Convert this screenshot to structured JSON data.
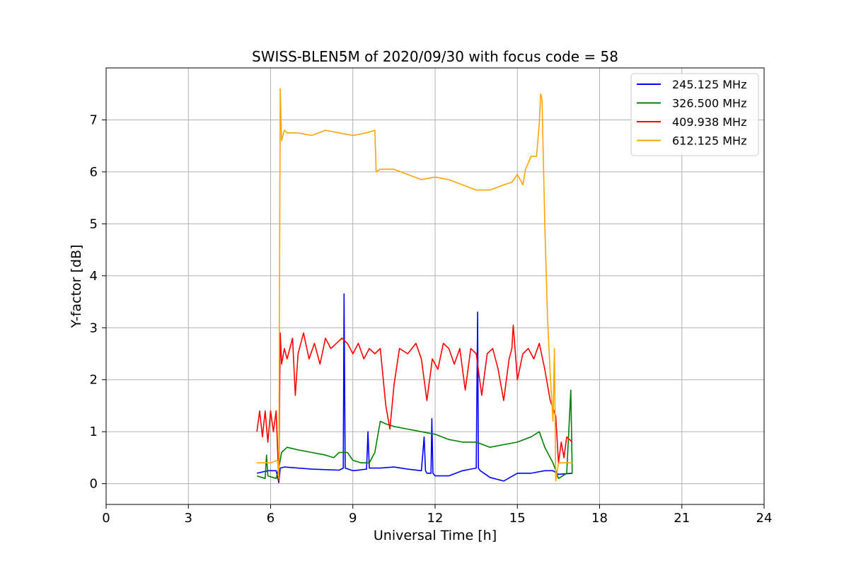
{
  "chart_data": {
    "type": "line",
    "title": "SWISS-BLEN5M of 2020/09/30 with focus code = 58",
    "xlabel": "Universal Time [h]",
    "ylabel": "Y-factor [dB]",
    "xlim": [
      0,
      24
    ],
    "ylim": [
      -0.4,
      8.0
    ],
    "xticks": [
      0,
      3,
      6,
      9,
      12,
      15,
      18,
      21,
      24
    ],
    "yticks": [
      0,
      1,
      2,
      3,
      4,
      5,
      6,
      7
    ],
    "grid": true,
    "legend_position": "top-right",
    "series": [
      {
        "name": "245.125 MHz",
        "color": "#0000ff",
        "x": [
          5.5,
          5.9,
          6.2,
          6.3,
          6.35,
          6.5,
          7.0,
          7.5,
          8.0,
          8.5,
          8.65,
          8.68,
          8.72,
          9.0,
          9.5,
          9.55,
          9.6,
          10.0,
          10.5,
          11.0,
          11.5,
          11.6,
          11.65,
          11.7,
          11.85,
          11.88,
          11.92,
          12.0,
          12.5,
          13.0,
          13.5,
          13.55,
          13.58,
          13.65,
          14.0,
          14.5,
          15.0,
          15.5,
          16.0,
          16.3,
          16.5,
          17.0
        ],
        "y": [
          0.2,
          0.25,
          0.25,
          0.02,
          0.3,
          0.32,
          0.3,
          0.28,
          0.27,
          0.26,
          0.3,
          3.65,
          0.3,
          0.25,
          0.28,
          1.0,
          0.3,
          0.3,
          0.32,
          0.28,
          0.25,
          0.9,
          0.25,
          0.2,
          0.2,
          1.25,
          0.2,
          0.15,
          0.15,
          0.25,
          0.3,
          3.3,
          0.3,
          0.25,
          0.12,
          0.05,
          0.2,
          0.2,
          0.25,
          0.25,
          0.18,
          0.2
        ]
      },
      {
        "name": "326.500 MHz",
        "color": "#008000",
        "x": [
          5.5,
          5.8,
          5.85,
          5.9,
          6.2,
          6.3,
          6.4,
          6.6,
          7.0,
          7.5,
          8.0,
          8.3,
          8.5,
          8.8,
          9.0,
          9.3,
          9.6,
          9.8,
          10.0,
          10.2,
          10.5,
          11.0,
          11.5,
          12.0,
          12.5,
          13.0,
          13.5,
          14.0,
          14.5,
          15.0,
          15.5,
          15.8,
          16.0,
          16.3,
          16.5,
          16.8,
          16.95,
          17.0
        ],
        "y": [
          0.15,
          0.1,
          0.55,
          0.15,
          0.1,
          0.3,
          0.6,
          0.7,
          0.65,
          0.6,
          0.55,
          0.5,
          0.6,
          0.6,
          0.45,
          0.4,
          0.4,
          0.6,
          1.2,
          1.15,
          1.1,
          1.05,
          1.0,
          0.95,
          0.85,
          0.8,
          0.8,
          0.7,
          0.75,
          0.8,
          0.9,
          1.0,
          0.7,
          0.4,
          0.1,
          0.2,
          1.8,
          0.2
        ]
      },
      {
        "name": "409.938 MHz",
        "color": "#ff0000",
        "x": [
          5.5,
          5.6,
          5.7,
          5.8,
          5.9,
          6.0,
          6.1,
          6.2,
          6.3,
          6.35,
          6.4,
          6.5,
          6.6,
          6.8,
          6.9,
          7.0,
          7.2,
          7.4,
          7.6,
          7.8,
          8.0,
          8.2,
          8.4,
          8.6,
          8.8,
          9.0,
          9.2,
          9.4,
          9.6,
          9.8,
          10.0,
          10.2,
          10.35,
          10.5,
          10.7,
          11.0,
          11.3,
          11.5,
          11.7,
          11.9,
          12.1,
          12.3,
          12.5,
          12.7,
          12.9,
          13.1,
          13.3,
          13.5,
          13.7,
          13.9,
          14.1,
          14.3,
          14.5,
          14.7,
          14.8,
          14.85,
          15.0,
          15.2,
          15.4,
          15.6,
          15.8,
          16.0,
          16.2,
          16.4,
          16.5,
          16.6,
          16.7,
          16.8,
          17.0
        ],
        "y": [
          1.0,
          1.4,
          0.9,
          1.4,
          0.8,
          1.4,
          1.0,
          1.4,
          0.05,
          2.9,
          2.3,
          2.6,
          2.4,
          2.8,
          1.7,
          2.5,
          2.9,
          2.4,
          2.7,
          2.3,
          2.8,
          2.6,
          2.7,
          2.8,
          2.7,
          2.5,
          2.7,
          2.4,
          2.6,
          2.5,
          2.6,
          1.5,
          1.05,
          1.9,
          2.6,
          2.5,
          2.7,
          2.4,
          1.6,
          2.4,
          2.2,
          2.7,
          2.6,
          2.3,
          2.6,
          1.8,
          2.6,
          2.5,
          1.7,
          2.5,
          2.6,
          2.2,
          1.6,
          2.4,
          2.6,
          3.05,
          2.0,
          2.5,
          2.6,
          2.4,
          2.7,
          2.2,
          1.6,
          1.3,
          0.4,
          0.8,
          0.5,
          0.9,
          0.8
        ]
      },
      {
        "name": "612.125 MHz",
        "color": "#ffa500",
        "x": [
          5.5,
          6.0,
          6.25,
          6.3,
          6.35,
          6.4,
          6.5,
          6.6,
          7.0,
          7.5,
          8.0,
          8.5,
          9.0,
          9.5,
          9.8,
          9.85,
          10.0,
          10.5,
          11.0,
          11.5,
          12.0,
          12.5,
          13.0,
          13.5,
          14.0,
          14.5,
          14.8,
          15.0,
          15.2,
          15.3,
          15.5,
          15.7,
          15.8,
          15.85,
          15.9,
          16.0,
          16.1,
          16.2,
          16.3,
          16.35,
          16.4,
          16.5,
          17.0
        ],
        "y": [
          0.4,
          0.4,
          0.45,
          0.1,
          7.6,
          6.6,
          6.8,
          6.75,
          6.75,
          6.7,
          6.8,
          6.75,
          6.7,
          6.75,
          6.8,
          6.0,
          6.05,
          6.05,
          5.95,
          5.85,
          5.9,
          5.85,
          5.75,
          5.65,
          5.65,
          5.75,
          5.8,
          5.95,
          5.75,
          6.05,
          6.3,
          6.3,
          6.95,
          7.5,
          7.4,
          5.0,
          3.2,
          2.1,
          1.2,
          2.6,
          0.05,
          0.4,
          0.4
        ]
      }
    ]
  }
}
